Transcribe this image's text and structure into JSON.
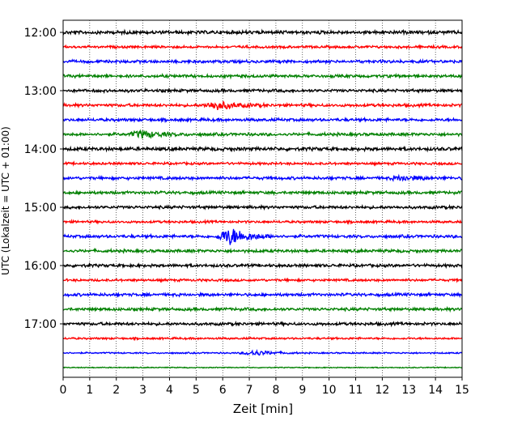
{
  "chart_data": {
    "type": "line",
    "title": "",
    "xlabel": "Zeit  [min]",
    "ylabel": "UTC (Lokalzeit = UTC + 01:00)",
    "xlim": [
      0,
      15
    ],
    "x_ticks": [
      "0",
      "1",
      "2",
      "3",
      "4",
      "5",
      "6",
      "7",
      "8",
      "9",
      "10",
      "11",
      "12",
      "13",
      "14",
      "15"
    ],
    "y_ticks": [
      "12:00",
      "13:00",
      "14:00",
      "15:00",
      "16:00",
      "17:00"
    ],
    "grid": "vertical-dotted",
    "trace_minutes": 15,
    "colors": {
      "black": "#000000",
      "red": "#ff0000",
      "blue": "#0000ff",
      "green": "#008000"
    },
    "series": [
      {
        "start": "12:00",
        "color": "black",
        "amp": 0.35
      },
      {
        "start": "12:15",
        "color": "red",
        "amp": 0.25
      },
      {
        "start": "12:30",
        "color": "blue",
        "amp": 0.3
      },
      {
        "start": "12:45",
        "color": "green",
        "amp": 0.3
      },
      {
        "start": "13:00",
        "color": "black",
        "amp": 0.3
      },
      {
        "start": "13:15",
        "color": "red",
        "amp": 0.3,
        "burst": {
          "t": 5.8,
          "amp": 0.9
        }
      },
      {
        "start": "13:30",
        "color": "blue",
        "amp": 0.3
      },
      {
        "start": "13:45",
        "color": "green",
        "amp": 0.3,
        "burst": {
          "t": 3.0,
          "amp": 0.8
        }
      },
      {
        "start": "14:00",
        "color": "black",
        "amp": 0.35
      },
      {
        "start": "14:15",
        "color": "red",
        "amp": 0.25
      },
      {
        "start": "14:30",
        "color": "blue",
        "amp": 0.3,
        "burst": {
          "t": 12.8,
          "amp": 0.5
        }
      },
      {
        "start": "14:45",
        "color": "green",
        "amp": 0.3
      },
      {
        "start": "15:00",
        "color": "black",
        "amp": 0.3
      },
      {
        "start": "15:15",
        "color": "red",
        "amp": 0.25
      },
      {
        "start": "15:30",
        "color": "blue",
        "amp": 0.3,
        "burst": {
          "t": 6.3,
          "amp": 2.0
        }
      },
      {
        "start": "15:45",
        "color": "green",
        "amp": 0.3
      },
      {
        "start": "16:00",
        "color": "black",
        "amp": 0.3
      },
      {
        "start": "16:15",
        "color": "red",
        "amp": 0.25
      },
      {
        "start": "16:30",
        "color": "blue",
        "amp": 0.3
      },
      {
        "start": "16:45",
        "color": "green",
        "amp": 0.3
      },
      {
        "start": "17:00",
        "color": "black",
        "amp": 0.3
      },
      {
        "start": "17:15",
        "color": "red",
        "amp": 0.2
      },
      {
        "start": "17:30",
        "color": "blue",
        "amp": 0.15,
        "burst": {
          "t": 7.2,
          "amp": 0.6
        }
      },
      {
        "start": "17:45",
        "color": "green",
        "amp": 0.1
      }
    ]
  }
}
